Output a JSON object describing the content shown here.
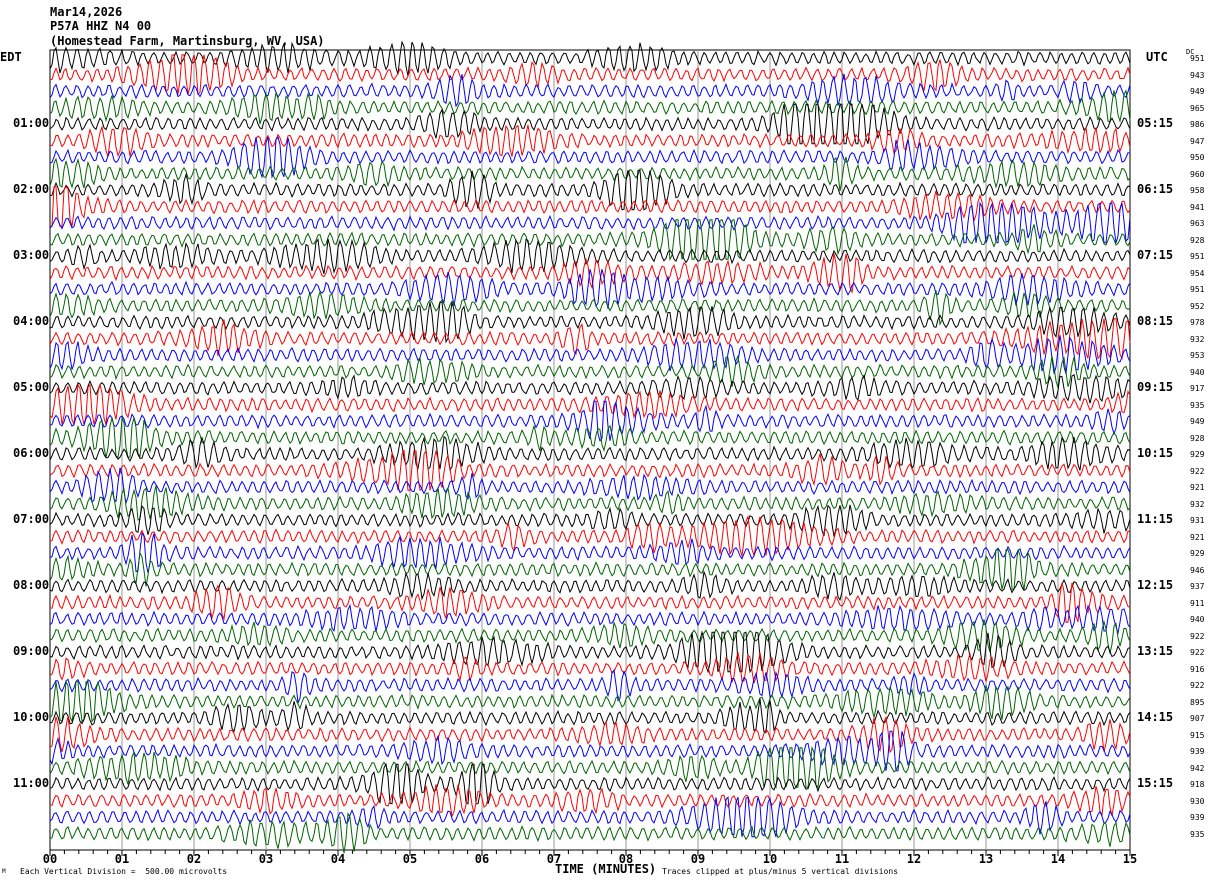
{
  "header": {
    "date": "Mar14,2026",
    "station": "P57A HHZ N4 00",
    "location": "(Homestead Farm, Martinsburg, WV, USA)"
  },
  "chart_data": {
    "type": "line",
    "description_type": "helicorder",
    "left_timezone": "EDT",
    "right_timezone": "UTC",
    "dc_header": "DC",
    "left_time_labels": [
      "01:00",
      "02:00",
      "03:00",
      "04:00",
      "05:00",
      "06:00",
      "07:00",
      "08:00",
      "09:00",
      "10:00",
      "11:00"
    ],
    "right_time_labels": [
      "05:15",
      "06:15",
      "07:15",
      "08:15",
      "09:15",
      "10:15",
      "11:15",
      "12:15",
      "13:15",
      "14:15",
      "15:15"
    ],
    "dc_values": [
      951,
      943,
      949,
      965,
      986,
      947,
      950,
      960,
      958,
      941,
      963,
      928,
      951,
      954,
      951,
      952,
      978,
      932,
      953,
      940,
      917,
      935,
      949,
      928,
      929,
      922,
      921,
      932,
      931,
      921,
      929,
      946,
      937,
      911,
      940,
      922,
      922,
      916,
      922,
      895,
      907,
      915,
      939,
      942,
      918,
      930,
      939,
      935
    ],
    "trace_count": 48,
    "trace_colors": [
      "#000000",
      "#ff0000",
      "#0000ff",
      "#006400"
    ],
    "x_ticks": [
      "00",
      "01",
      "02",
      "03",
      "04",
      "05",
      "06",
      "07",
      "08",
      "09",
      "10",
      "11",
      "12",
      "13",
      "14",
      "15"
    ],
    "xlim": [
      0,
      15
    ],
    "xlabel": "TIME (MINUTES)",
    "grid": true
  },
  "footer": {
    "scale": "Each Vertical Division =  500.00 microvolts",
    "clip": "Traces clipped at plus/minus 5 vertical divisions",
    "mark": "M"
  }
}
